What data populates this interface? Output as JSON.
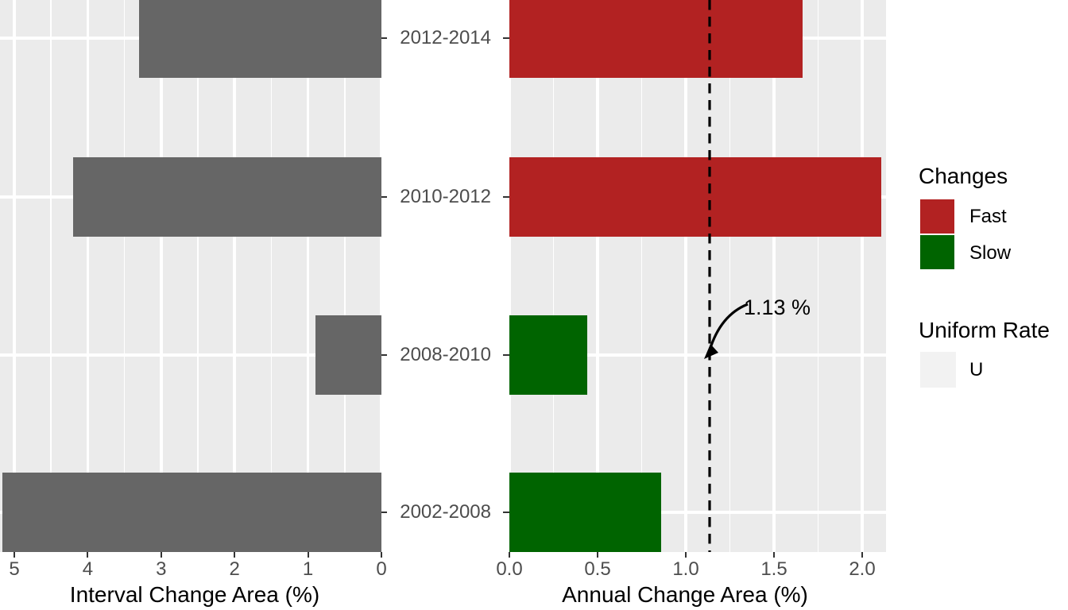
{
  "chart_data": [
    {
      "type": "bar",
      "orientation": "horizontal",
      "xlabel": "Interval Change Area (%)",
      "categories": [
        "2012-2014",
        "2010-2012",
        "2008-2010",
        "2002-2008"
      ],
      "values": [
        3.3,
        4.2,
        0.9,
        5.16
      ],
      "bar_color": "#666666",
      "axis_reversed": true,
      "xlim": [
        5.2,
        0
      ],
      "xticks": {
        "values": [
          5,
          4,
          3,
          2,
          1,
          0
        ],
        "labels": [
          "5",
          "4",
          "3",
          "2",
          "1",
          "0"
        ]
      },
      "grid": true
    },
    {
      "type": "bar",
      "orientation": "horizontal",
      "xlabel": "Annual Change Area (%)",
      "categories": [
        "2012-2014",
        "2010-2012",
        "2008-2010",
        "2002-2008"
      ],
      "values": [
        1.66,
        2.11,
        0.44,
        0.86
      ],
      "groups": [
        "Fast",
        "Fast",
        "Slow",
        "Slow"
      ],
      "group_colors": {
        "Fast": "#B22222",
        "Slow": "#006400"
      },
      "xlim": [
        0,
        2.14
      ],
      "xticks": {
        "values": [
          0,
          0.5,
          1,
          1.5,
          2
        ],
        "labels": [
          "0.0",
          "0.5",
          "1.0",
          "1.5",
          "2.0"
        ]
      },
      "reference_line": {
        "value": 1.13,
        "label": "1.13 %",
        "style": "dashed",
        "color": "#000000"
      },
      "grid": true
    }
  ],
  "legend": {
    "changes": {
      "title": "Changes",
      "items": [
        {
          "label": "Fast",
          "color": "#B22222"
        },
        {
          "label": "Slow",
          "color": "#006400"
        }
      ]
    },
    "uniform": {
      "title": "Uniform Rate",
      "items": [
        {
          "label": "U",
          "style": "dashed"
        }
      ],
      "key_bg": "#F2F2F2"
    }
  },
  "colors": {
    "panel_bg": "#EBEBEB",
    "grid": "#FFFFFF",
    "interval_bar": "#666666",
    "fast": "#B22222",
    "slow": "#006400",
    "axis_text": "#4D4D4D",
    "tick": "#333333"
  }
}
